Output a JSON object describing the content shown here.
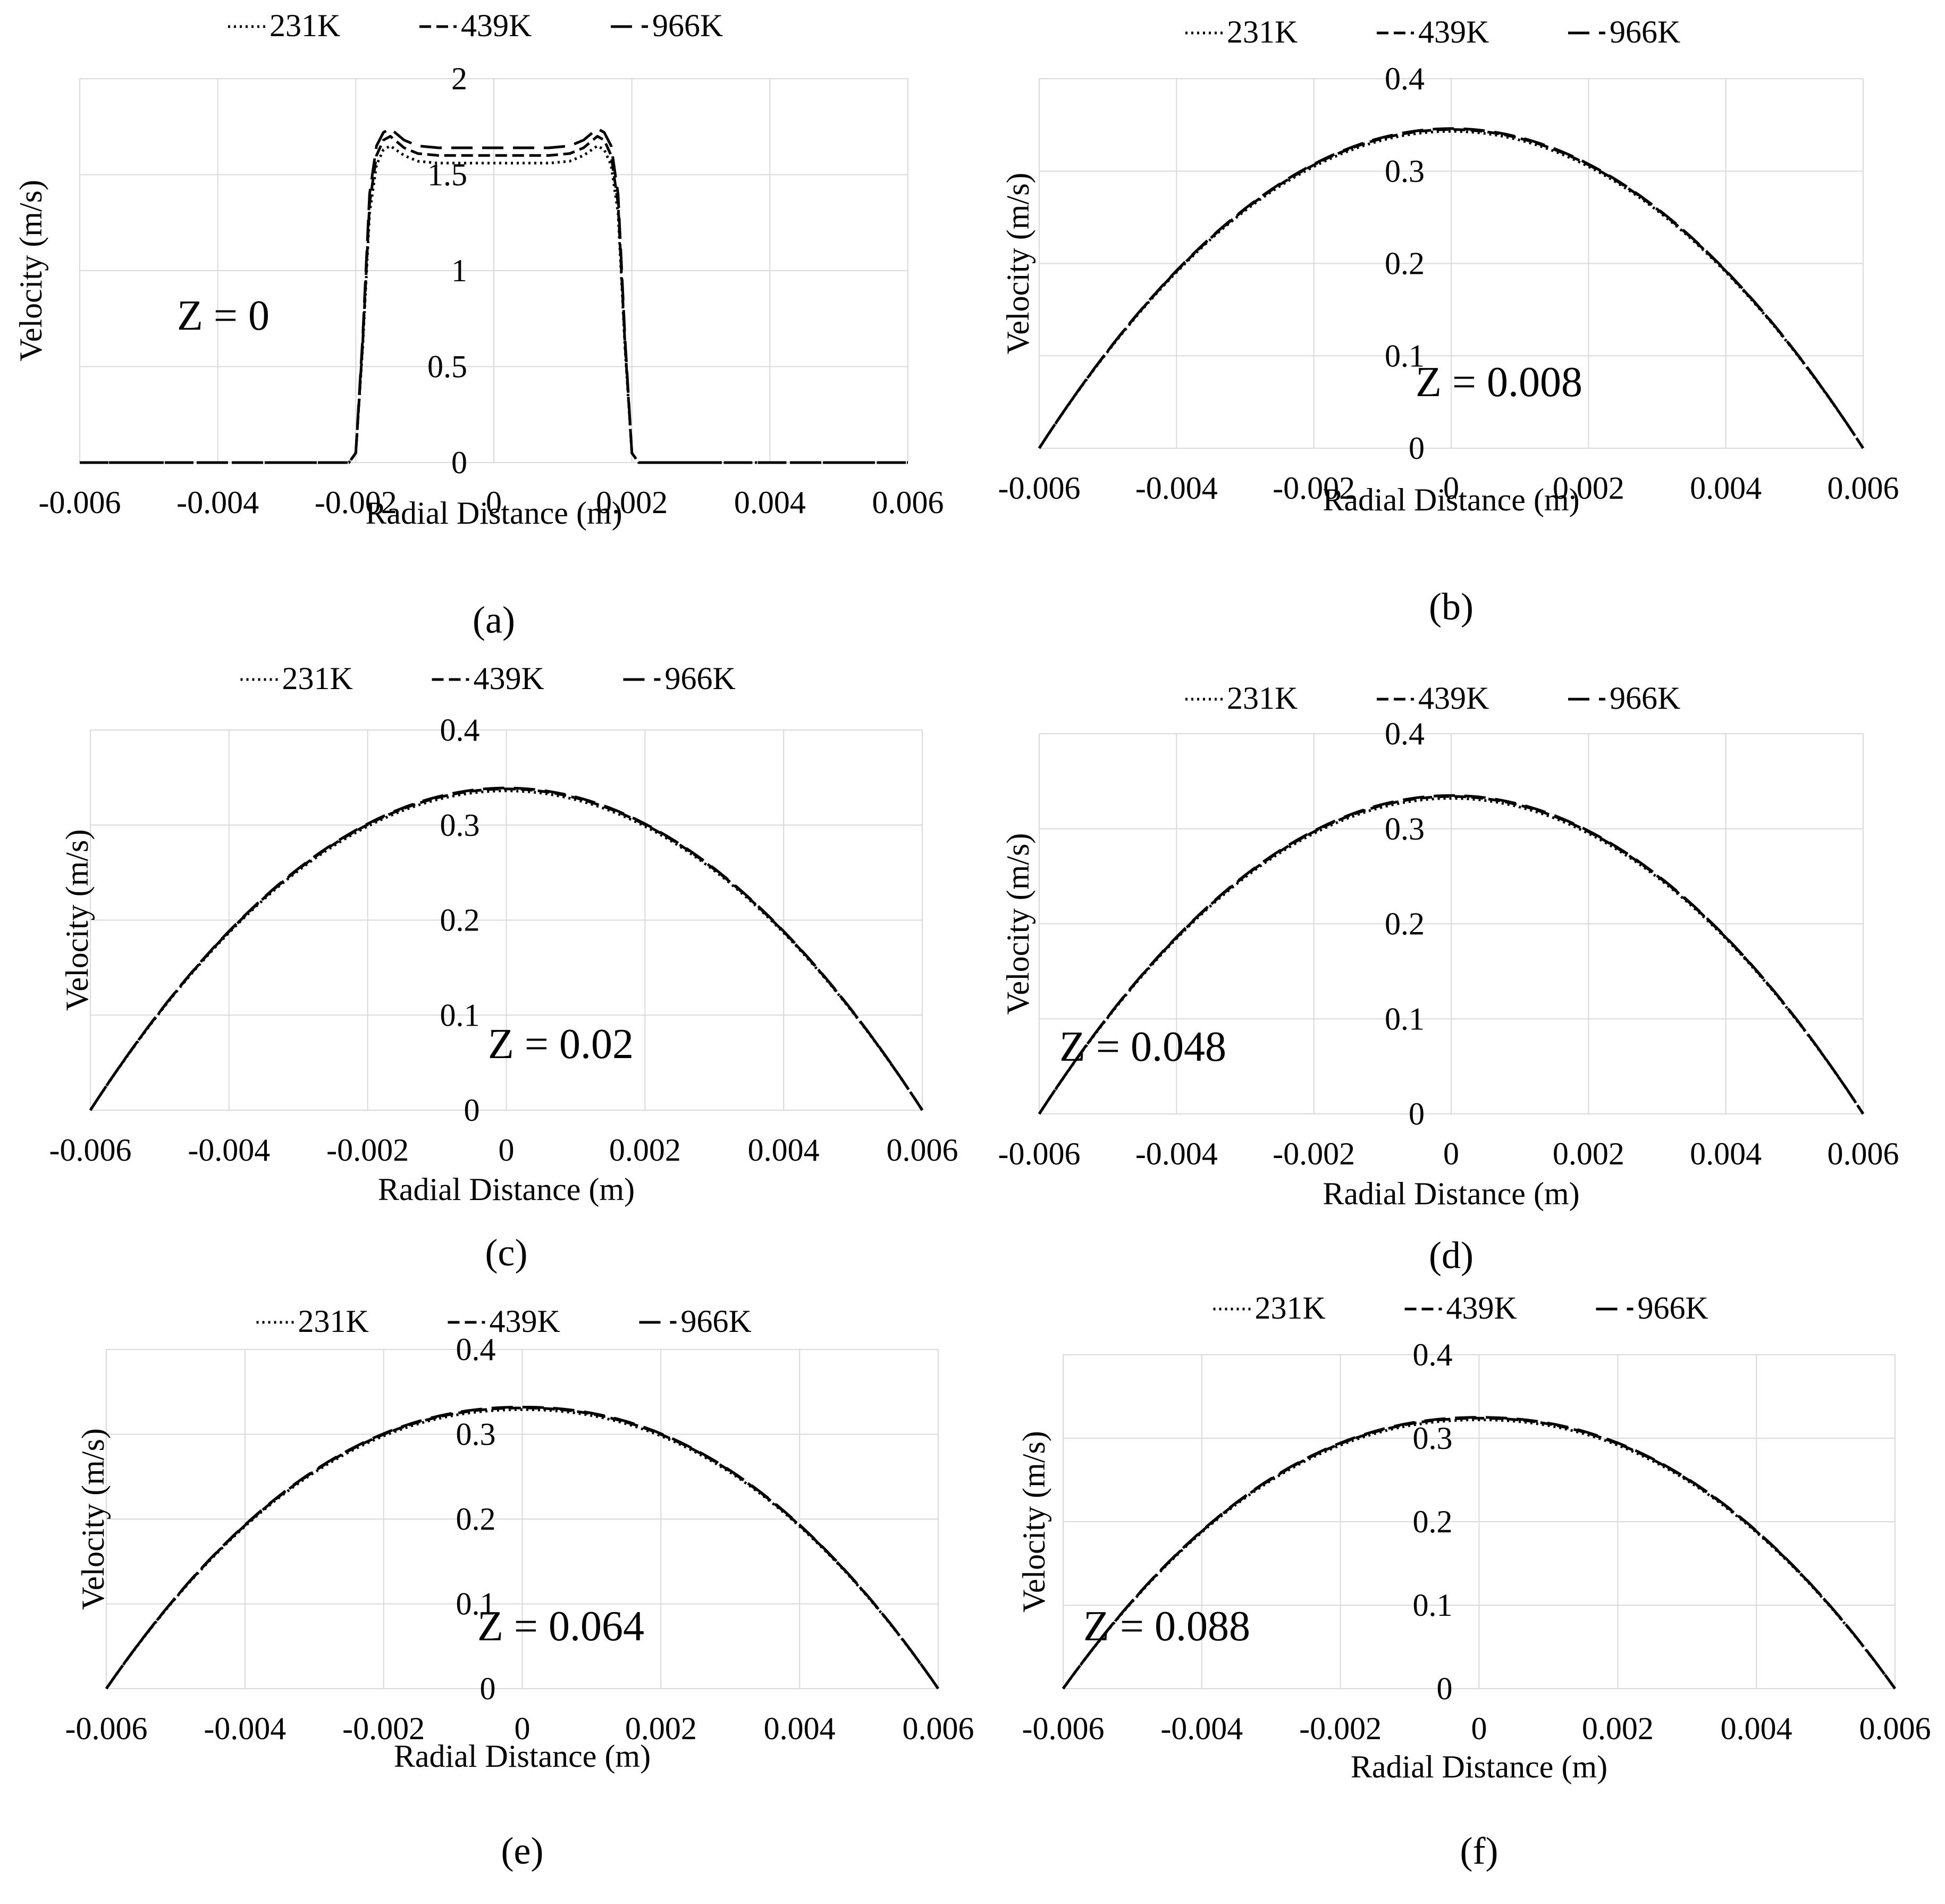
{
  "figure": {
    "panels": [
      {
        "id": "a",
        "caption": "(a)",
        "annotation": "Z = 0",
        "legend": [
          "231K",
          "439K",
          "966K"
        ],
        "xlabel": "Radial Distance (m)",
        "ylabel": "Velocity (m/s)"
      },
      {
        "id": "b",
        "caption": "(b)",
        "annotation": "Z = 0.008",
        "legend": [
          "231K",
          "439K",
          "966K"
        ],
        "xlabel": "Radial Distance (m)",
        "ylabel": "Velocity (m/s)"
      },
      {
        "id": "c",
        "caption": "(c)",
        "annotation": "Z = 0.02",
        "legend": [
          "231K",
          "439K",
          "966K"
        ],
        "xlabel": "Radial Distance (m)",
        "ylabel": "Velocity (m/s)"
      },
      {
        "id": "d",
        "caption": "(d)",
        "annotation": "Z = 0.048",
        "legend": [
          "231K",
          "439K",
          "966K"
        ],
        "xlabel": "Radial Distance (m)",
        "ylabel": "Velocity (m/s)"
      },
      {
        "id": "e",
        "caption": "(e)",
        "annotation": "Z = 0.064",
        "legend": [
          "231K",
          "439K",
          "966K"
        ],
        "xlabel": "Radial Distance (m)",
        "ylabel": "Velocity (m/s)"
      },
      {
        "id": "f",
        "caption": "(f)",
        "annotation": "Z = 0.088",
        "legend": [
          "231K",
          "439K",
          "966K"
        ],
        "xlabel": "Radial Distance (m)",
        "ylabel": "Velocity (m/s)"
      }
    ]
  },
  "chart_data": [
    {
      "type": "line",
      "panel": "a",
      "title": "",
      "xlabel": "Radial Distance (m)",
      "ylabel": "Velocity (m/s)",
      "annotation": "Z = 0",
      "xlim": [
        -0.006,
        0.006
      ],
      "ylim": [
        0,
        2
      ],
      "xticks": [
        "-0.006",
        "-0.004",
        "-0.002",
        "0",
        "0.002",
        "0.004",
        "0.006"
      ],
      "yticks": [
        "0",
        "0.5",
        "1",
        "1.5",
        "2"
      ],
      "grid": true,
      "legend": "top",
      "series": [
        {
          "name": "231K",
          "dash": "dotted",
          "x": [
            -0.006,
            -0.0021,
            -0.002,
            -0.0019,
            -0.0018,
            -0.0017,
            -0.0016,
            -0.0015,
            -0.0013,
            -0.0011,
            -0.0008,
            -0.0004,
            0,
            0.0004,
            0.0008,
            0.0011,
            0.0013,
            0.0015,
            0.0016,
            0.0017,
            0.0018,
            0.0019,
            0.002,
            0.0021,
            0.006
          ],
          "y": [
            0,
            0,
            0.05,
            0.6,
            1.3,
            1.55,
            1.63,
            1.65,
            1.6,
            1.57,
            1.56,
            1.56,
            1.56,
            1.56,
            1.56,
            1.57,
            1.6,
            1.65,
            1.63,
            1.55,
            1.3,
            0.6,
            0.05,
            0,
            0
          ]
        },
        {
          "name": "439K",
          "dash": "short-dash",
          "x": [
            -0.006,
            -0.0021,
            -0.002,
            -0.0019,
            -0.0018,
            -0.0017,
            -0.0016,
            -0.0015,
            -0.0013,
            -0.0011,
            -0.0008,
            -0.0004,
            0,
            0.0004,
            0.0008,
            0.0011,
            0.0013,
            0.0015,
            0.0016,
            0.0017,
            0.0018,
            0.0019,
            0.002,
            0.0021,
            0.006
          ],
          "y": [
            0,
            0,
            0.05,
            0.62,
            1.35,
            1.6,
            1.68,
            1.7,
            1.64,
            1.61,
            1.6,
            1.6,
            1.6,
            1.6,
            1.6,
            1.61,
            1.64,
            1.7,
            1.68,
            1.6,
            1.35,
            0.62,
            0.05,
            0,
            0
          ]
        },
        {
          "name": "966K",
          "dash": "long-dash",
          "x": [
            -0.006,
            -0.0021,
            -0.002,
            -0.0019,
            -0.0018,
            -0.0017,
            -0.0016,
            -0.0015,
            -0.0013,
            -0.0011,
            -0.0008,
            -0.0004,
            0,
            0.0004,
            0.0008,
            0.0011,
            0.0013,
            0.0015,
            0.0016,
            0.0017,
            0.0018,
            0.0019,
            0.002,
            0.0021,
            0.006
          ],
          "y": [
            0,
            0,
            0.05,
            0.65,
            1.4,
            1.65,
            1.72,
            1.74,
            1.68,
            1.65,
            1.64,
            1.64,
            1.64,
            1.64,
            1.64,
            1.65,
            1.68,
            1.74,
            1.72,
            1.65,
            1.4,
            0.65,
            0.05,
            0,
            0
          ]
        }
      ]
    },
    {
      "type": "line",
      "panel": "b",
      "title": "",
      "xlabel": "Radial Distance (m)",
      "ylabel": "Velocity (m/s)",
      "annotation": "Z = 0.008",
      "xlim": [
        -0.006,
        0.006
      ],
      "ylim": [
        0,
        0.4
      ],
      "xticks": [
        "-0.006",
        "-0.004",
        "-0.002",
        "0",
        "0.002",
        "0.004",
        "0.006"
      ],
      "yticks": [
        "0",
        "0.1",
        "0.2",
        "0.3",
        "0.4"
      ],
      "grid": true,
      "legend": "top",
      "series": [
        {
          "name": "231K",
          "dash": "dotted",
          "profile": "parabolic",
          "peak": 0.343,
          "r": 0.006
        },
        {
          "name": "439K",
          "dash": "short-dash",
          "profile": "parabolic",
          "peak": 0.345,
          "r": 0.006
        },
        {
          "name": "966K",
          "dash": "long-dash",
          "profile": "parabolic",
          "peak": 0.346,
          "r": 0.006
        }
      ]
    },
    {
      "type": "line",
      "panel": "c",
      "title": "",
      "xlabel": "Radial Distance (m)",
      "ylabel": "Velocity (m/s)",
      "annotation": "Z = 0.02",
      "xlim": [
        -0.006,
        0.006
      ],
      "ylim": [
        0,
        0.4
      ],
      "xticks": [
        "-0.006",
        "-0.004",
        "-0.002",
        "0",
        "0.002",
        "0.004",
        "0.006"
      ],
      "yticks": [
        "0",
        "0.1",
        "0.2",
        "0.3",
        "0.4"
      ],
      "grid": true,
      "legend": "top",
      "series": [
        {
          "name": "231K",
          "dash": "dotted",
          "profile": "parabolic",
          "peak": 0.336,
          "r": 0.006
        },
        {
          "name": "439K",
          "dash": "short-dash",
          "profile": "parabolic",
          "peak": 0.338,
          "r": 0.006
        },
        {
          "name": "966K",
          "dash": "long-dash",
          "profile": "parabolic",
          "peak": 0.339,
          "r": 0.006
        }
      ]
    },
    {
      "type": "line",
      "panel": "d",
      "title": "",
      "xlabel": "Radial Distance (m)",
      "ylabel": "Velocity (m/s)",
      "annotation": "Z = 0.048",
      "xlim": [
        -0.006,
        0.006
      ],
      "ylim": [
        0,
        0.4
      ],
      "xticks": [
        "-0.006",
        "-0.004",
        "-0.002",
        "0",
        "0.002",
        "0.004",
        "0.006"
      ],
      "yticks": [
        "0",
        "0.1",
        "0.2",
        "0.3",
        "0.4"
      ],
      "grid": true,
      "legend": "top",
      "series": [
        {
          "name": "231K",
          "dash": "dotted",
          "profile": "parabolic",
          "peak": 0.332,
          "r": 0.006
        },
        {
          "name": "439K",
          "dash": "short-dash",
          "profile": "parabolic",
          "peak": 0.334,
          "r": 0.006
        },
        {
          "name": "966K",
          "dash": "long-dash",
          "profile": "parabolic",
          "peak": 0.335,
          "r": 0.006
        }
      ]
    },
    {
      "type": "line",
      "panel": "e",
      "title": "",
      "xlabel": "Radial Distance (m)",
      "ylabel": "Velocity (m/s)",
      "annotation": "Z = 0.064",
      "xlim": [
        -0.006,
        0.006
      ],
      "ylim": [
        0,
        0.4
      ],
      "xticks": [
        "-0.006",
        "-0.004",
        "-0.002",
        "0",
        "0.002",
        "0.004",
        "0.006"
      ],
      "yticks": [
        "0",
        "0.1",
        "0.2",
        "0.3",
        "0.4"
      ],
      "grid": true,
      "legend": "top",
      "series": [
        {
          "name": "231K",
          "dash": "dotted",
          "profile": "blunted",
          "peak": 0.329,
          "r": 0.006
        },
        {
          "name": "439K",
          "dash": "short-dash",
          "profile": "blunted",
          "peak": 0.331,
          "r": 0.006
        },
        {
          "name": "966K",
          "dash": "long-dash",
          "profile": "blunted",
          "peak": 0.332,
          "r": 0.006
        }
      ]
    },
    {
      "type": "line",
      "panel": "f",
      "title": "",
      "xlabel": "Radial Distance (m)",
      "ylabel": "Velocity (m/s)",
      "annotation": "Z = 0.088",
      "xlim": [
        -0.006,
        0.006
      ],
      "ylim": [
        0,
        0.4
      ],
      "xticks": [
        "-0.006",
        "-0.004",
        "-0.002",
        "0",
        "0.002",
        "0.004",
        "0.006"
      ],
      "yticks": [
        "0",
        "0.1",
        "0.2",
        "0.3",
        "0.4"
      ],
      "grid": true,
      "legend": "top",
      "series": [
        {
          "name": "231K",
          "dash": "dotted",
          "profile": "blunted",
          "peak": 0.322,
          "r": 0.006
        },
        {
          "name": "439K",
          "dash": "short-dash",
          "profile": "blunted",
          "peak": 0.324,
          "r": 0.006
        },
        {
          "name": "966K",
          "dash": "long-dash",
          "profile": "blunted",
          "peak": 0.325,
          "r": 0.006
        }
      ]
    }
  ]
}
